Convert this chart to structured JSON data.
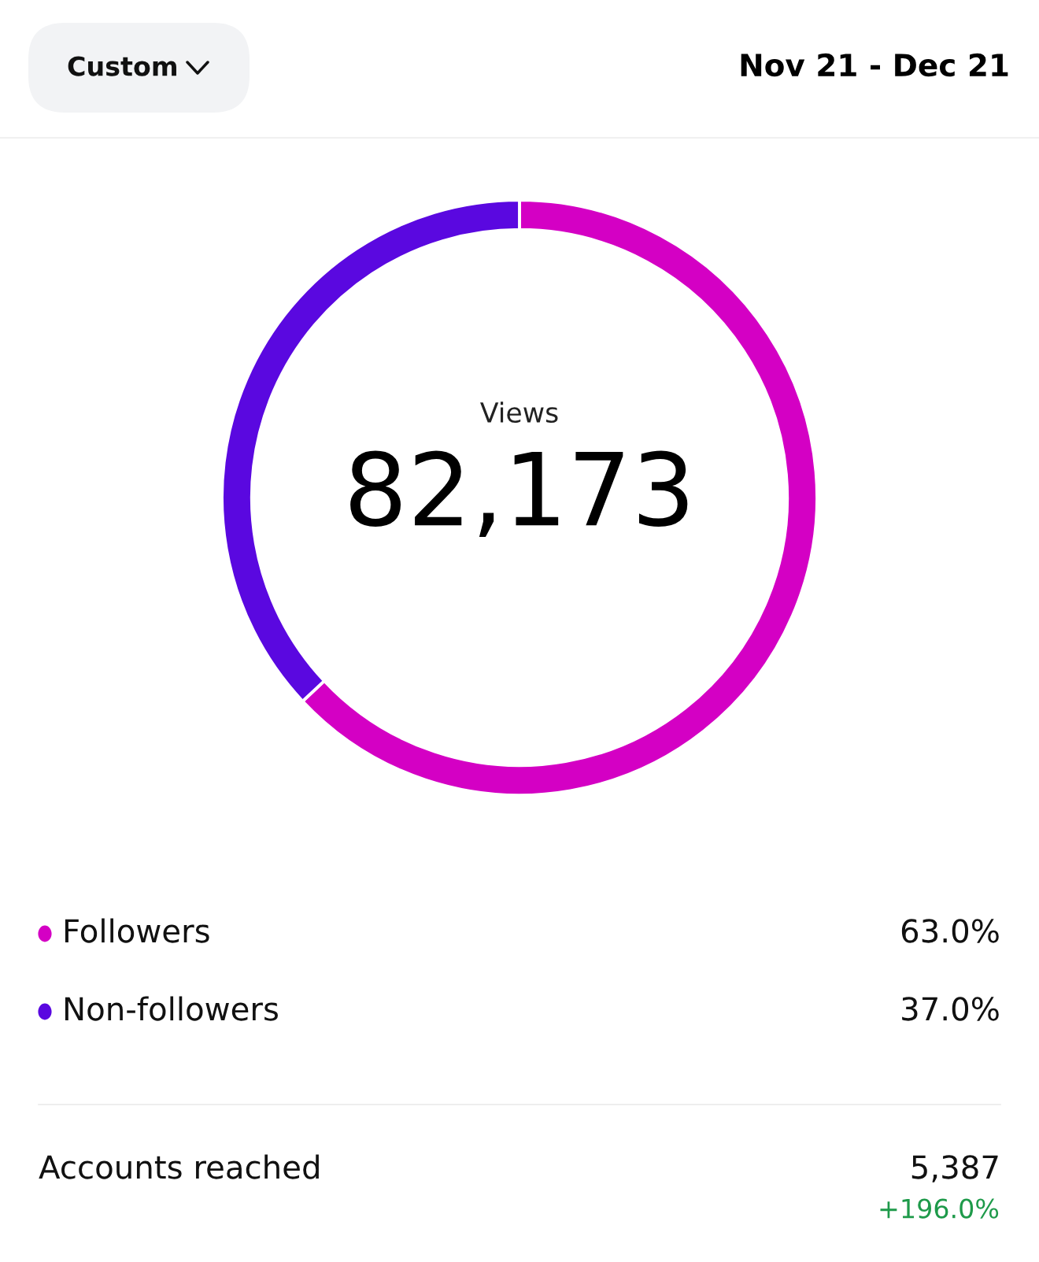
{
  "chart_data": {
    "type": "donut",
    "title": "Views",
    "subtitle": "82,173",
    "categories": [
      "Followers",
      "Non-followers"
    ],
    "values": [
      63.0,
      37.0
    ],
    "colors": [
      "#d400c4",
      "#5a08e0"
    ],
    "value_labels": [
      "63.0%",
      "37.0%"
    ],
    "legend": "bottom",
    "annotations": [
      "Custom",
      "Nov 21 - Dec 21",
      "Accounts reached",
      "5,387",
      "+196.0%"
    ]
  }
}
